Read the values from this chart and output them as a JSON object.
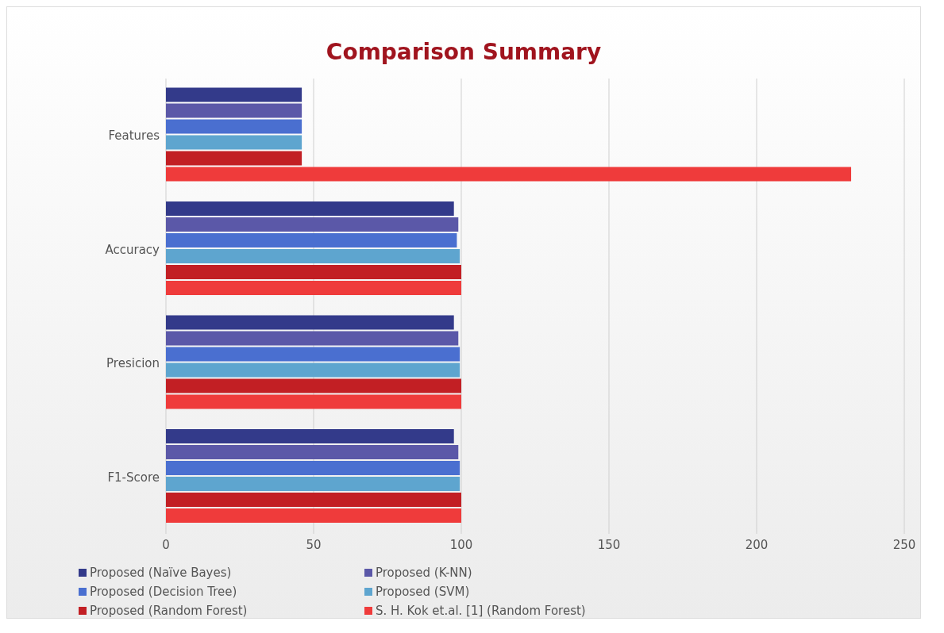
{
  "chart_data": {
    "type": "bar",
    "orientation": "horizontal",
    "title": "Comparison Summary",
    "categories": [
      "Features",
      "Accuracy",
      "Presicion",
      "F1-Score"
    ],
    "series": [
      {
        "name": "Proposed (Naïve Bayes)",
        "color": "#333a8a",
        "values": [
          46,
          97.5,
          97.5,
          97.5
        ]
      },
      {
        "name": "Proposed (K-NN)",
        "color": "#5b58a8",
        "values": [
          46,
          99,
          99,
          99
        ]
      },
      {
        "name": "Proposed (Decision Tree)",
        "color": "#4a6fd0",
        "values": [
          46,
          98.5,
          99.5,
          99.5
        ]
      },
      {
        "name": "Proposed (SVM)",
        "color": "#5ea5cf",
        "values": [
          46,
          99.5,
          99.5,
          99.5
        ]
      },
      {
        "name": "Proposed (Random Forest)",
        "color": "#c21f24",
        "values": [
          46,
          100,
          100,
          100
        ]
      },
      {
        "name": "S. H. Kok et.al. [1] (Random Forest)",
        "color": "#ef3b3b",
        "values": [
          232,
          100,
          100,
          100
        ]
      }
    ],
    "xlim": [
      0,
      250
    ],
    "xticks": [
      0,
      50,
      100,
      150,
      200,
      250
    ],
    "grid": "x",
    "legend": "bottom"
  }
}
